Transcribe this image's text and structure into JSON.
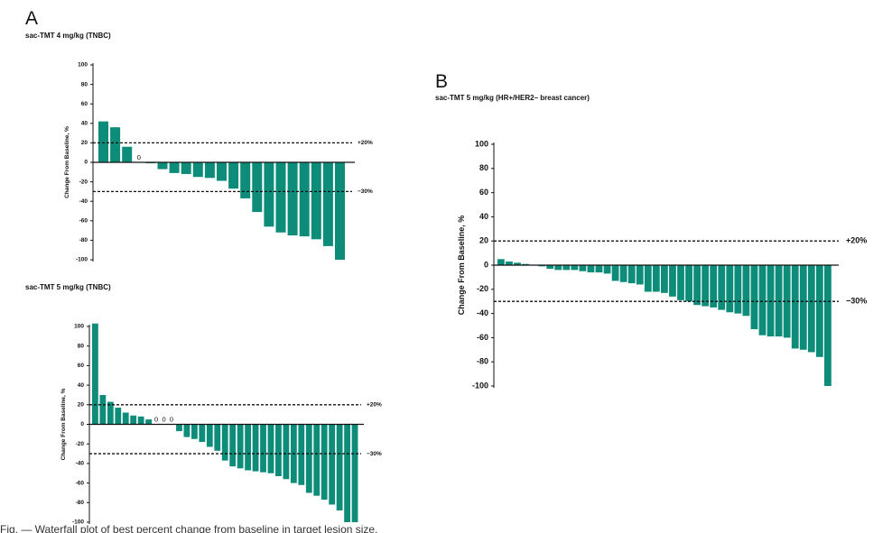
{
  "panels": [
    {
      "letter": "A"
    },
    {
      "letter": "B"
    }
  ],
  "chart_data": [
    {
      "type": "bar",
      "title": "sac-TMT 4 mg/kg (TNBC)",
      "ylabel": "Change  From Baseline, %",
      "ylim": [
        -100,
        100
      ],
      "yticks": [
        100,
        80,
        60,
        40,
        20,
        0,
        -20,
        -40,
        -60,
        -80,
        -100
      ],
      "bar_color": "#0e8c7a",
      "values": [
        42,
        36,
        16,
        0,
        -1,
        -7,
        -11,
        -12,
        -15,
        -16,
        -19,
        -27,
        -37,
        -51,
        -66,
        -72,
        -75,
        -76,
        -79,
        -86,
        -100
      ],
      "zero_marker": "0",
      "reference_lines": [
        {
          "value": 20,
          "label": "+20%"
        },
        {
          "value": -30,
          "label": "−30%"
        }
      ]
    },
    {
      "type": "bar",
      "title": "sac-TMT 5 mg/kg (TNBC)",
      "ylabel": "Change  From Baseline, %",
      "ylim": [
        -100,
        100
      ],
      "yticks": [
        100,
        80,
        60,
        40,
        20,
        0,
        -20,
        -40,
        -60,
        -80,
        -100
      ],
      "bar_color": "#0e8c7a",
      "values": [
        103,
        30,
        23,
        17,
        12,
        9,
        8,
        5,
        0,
        0,
        0,
        -7,
        -13,
        -15,
        -18,
        -23,
        -27,
        -37,
        -43,
        -45,
        -47,
        -48,
        -49,
        -50,
        -53,
        -56,
        -60,
        -62,
        -70,
        -73,
        -77,
        -82,
        -88,
        -100,
        -100
      ],
      "zero_marker": "0",
      "reference_lines": [
        {
          "value": 20,
          "label": "+20%"
        },
        {
          "value": -30,
          "label": "−30%"
        }
      ]
    },
    {
      "type": "bar",
      "title": "sac-TMT 5 mg/kg (HR+/HER2– breast cancer)",
      "ylabel": "Change  From Baseline,  %",
      "ylim": [
        -100,
        100
      ],
      "yticks": [
        100,
        80,
        60,
        40,
        20,
        0,
        -20,
        -40,
        -60,
        -80,
        -100
      ],
      "bar_color": "#0e8c7a",
      "values": [
        5,
        3,
        2,
        1,
        0,
        -1,
        -3,
        -4,
        -4,
        -4,
        -5,
        -6,
        -6,
        -7,
        -13,
        -14,
        -15,
        -16,
        -22,
        -22,
        -23,
        -26,
        -29,
        -30,
        -33,
        -34,
        -35,
        -37,
        -39,
        -40,
        -42,
        -53,
        -58,
        -59,
        -59,
        -60,
        -69,
        -70,
        -72,
        -76,
        -100
      ],
      "reference_lines": [
        {
          "value": 20,
          "label": "+20%"
        },
        {
          "value": -30,
          "label": "−30%"
        }
      ]
    }
  ],
  "caption": "Fig. — Waterfall plot of best percent change from baseline in target lesion size."
}
